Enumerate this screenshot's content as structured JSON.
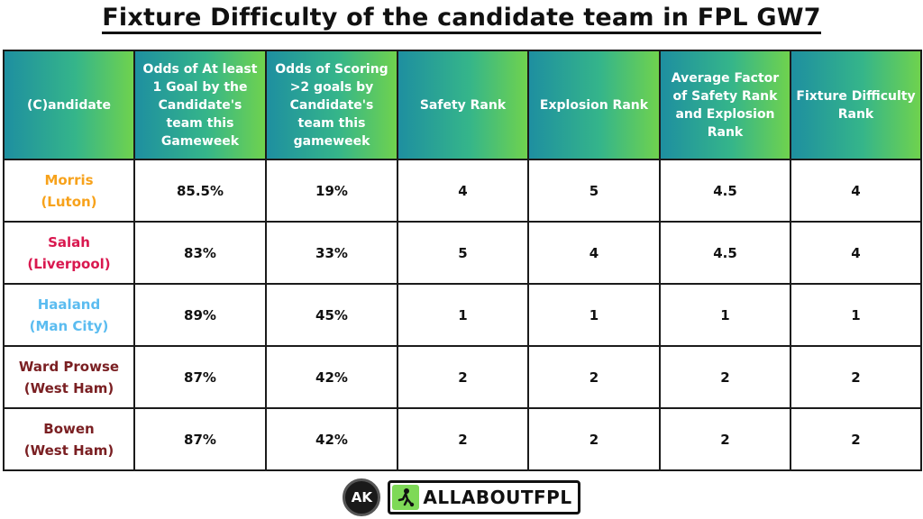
{
  "title": "Fixture Difficulty of the candidate team in FPL GW7",
  "colors": {
    "header_gradient": [
      "#1e8fa0",
      "#35b58a",
      "#6fd24e"
    ],
    "best_value": "#22b24c",
    "border": "#1b1b1b"
  },
  "table": {
    "headers": [
      "(C)andidate",
      "Odds of At least 1 Goal by the Candidate's team this Gameweek",
      "Odds of Scoring >2 goals by Candidate's team this gameweek",
      "Safety Rank",
      "Explosion Rank",
      "Average Factor of Safety Rank and Explosion Rank",
      "Fixture Difficulty Rank"
    ],
    "rows": [
      {
        "name": "Morris",
        "team": "(Luton)",
        "color": "#f7a21b",
        "cells": [
          "85.5%",
          "19%",
          "4",
          "5",
          "4.5",
          "4"
        ],
        "highlight": false
      },
      {
        "name": "Salah",
        "team": "(Liverpool)",
        "color": "#d9184f",
        "cells": [
          "83%",
          "33%",
          "5",
          "4",
          "4.5",
          "4"
        ],
        "highlight": false
      },
      {
        "name": "Haaland",
        "team": "(Man City)",
        "color": "#5bbcf0",
        "cells": [
          "89%",
          "45%",
          "1",
          "1",
          "1",
          "1"
        ],
        "highlight": true
      },
      {
        "name": "Ward Prowse",
        "team": "(West Ham)",
        "color": "#7a1f22",
        "cells": [
          "87%",
          "42%",
          "2",
          "2",
          "2",
          "2"
        ],
        "highlight": false
      },
      {
        "name": "Bowen",
        "team": "(West Ham)",
        "color": "#7a1f22",
        "cells": [
          "87%",
          "42%",
          "2",
          "2",
          "2",
          "2"
        ],
        "highlight": false
      }
    ]
  },
  "footer": {
    "logo_initials": "AK",
    "brand_text": "ALLABOUTFPL",
    "brand_icon": "football-player-icon"
  }
}
